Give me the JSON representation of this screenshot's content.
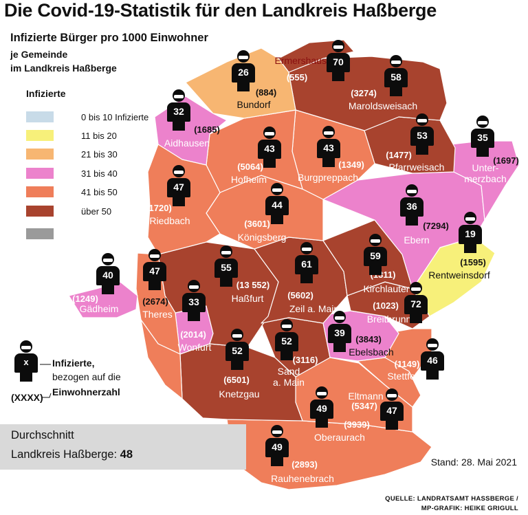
{
  "title": "Die Covid-19-Statistik für den Landkreis Haßberge",
  "subtitle": "Infizierte Bürger pro 1000 Einwohner",
  "subline1": "je Gemeinde",
  "subline2": "im Landkreis Haßberge",
  "legend": {
    "heading": "Infizierte",
    "items": [
      {
        "label": "0 bis 10 Infizierte",
        "color": "#c8dbe8"
      },
      {
        "label": "11 bis 20",
        "color": "#f7f07a"
      },
      {
        "label": "21 bis 30",
        "color": "#f7b672"
      },
      {
        "label": "31 bis 40",
        "color": "#ec82cc"
      },
      {
        "label": "41 bis 50",
        "color": "#ef7e5a"
      },
      {
        "label": "über 50",
        "color": "#a8432e"
      },
      {
        "label": "",
        "color": "#9a9a9a"
      }
    ]
  },
  "municipalities": [
    {
      "name": "Ermershausen",
      "value": "70",
      "pop": "(555)"
    },
    {
      "name": "Bundorf",
      "value": "26",
      "pop": "(884)"
    },
    {
      "name": "Maroldsweisach",
      "value": "58",
      "pop": "(3274)"
    },
    {
      "name": "Aidhausen",
      "value": "32",
      "pop": "(1685)"
    },
    {
      "name": "Pfarrweisach",
      "value": "53",
      "pop": "(1477)"
    },
    {
      "name": "Untermerzbach",
      "value": "35",
      "pop": "(1697)"
    },
    {
      "name": "Hofheim",
      "value": "43",
      "pop": "(5064)"
    },
    {
      "name": "Burgpreppach",
      "value": "43",
      "pop": "(1349)"
    },
    {
      "name": "Riedbach",
      "value": "47",
      "pop": "(1720)"
    },
    {
      "name": "Königsberg",
      "value": "44",
      "pop": "(3601)"
    },
    {
      "name": "Ebern",
      "value": "36",
      "pop": "(7294)"
    },
    {
      "name": "Rentweinsdorf",
      "value": "19",
      "pop": "(1595)"
    },
    {
      "name": "Gädheim",
      "value": "40",
      "pop": "(1249)"
    },
    {
      "name": "Theres",
      "value": "47",
      "pop": "(2674)"
    },
    {
      "name": "Haßfurt",
      "value": "55",
      "pop": "(13 552)"
    },
    {
      "name": "Zeil a. Main",
      "value": "61",
      "pop": "(5602)"
    },
    {
      "name": "Kirchlauter",
      "value": "59",
      "pop": "(1311)"
    },
    {
      "name": "Breitbrunn",
      "value": "72",
      "pop": "(1023)"
    },
    {
      "name": "Wonfurt",
      "value": "33",
      "pop": "(2014)"
    },
    {
      "name": "Ebelsbach",
      "value": "39",
      "pop": "(3843)"
    },
    {
      "name": "Knetzgau",
      "value": "52",
      "pop": "(6501)"
    },
    {
      "name": "Sand a. Main",
      "value": "52",
      "pop": "(3116)"
    },
    {
      "name": "Stettfeld",
      "value": "46",
      "pop": "(1149)"
    },
    {
      "name": "Eltmann",
      "value": "47",
      "pop": "(5347)"
    },
    {
      "name": "Oberaurach",
      "value": "49",
      "pop": "(3939)"
    },
    {
      "name": "Rauhenebrach",
      "value": "49",
      "pop": "(2893)"
    }
  ],
  "key": {
    "figure_label": "x",
    "line1": "Infizierte,",
    "line2": "bezogen auf die",
    "line3": "Einwohnerzahl",
    "pop_label": "(XXXX)"
  },
  "average": {
    "line1": "Durchschnitt",
    "line2_prefix": "Landkreis Haßberge: ",
    "value": "48"
  },
  "stand": "Stand: 28. Mai 2021",
  "source1": "QUELLE: LANDRATSAMT HASSBERGE /",
  "source2": "MP-GRAFIK: HEIKE GRIGULL"
}
